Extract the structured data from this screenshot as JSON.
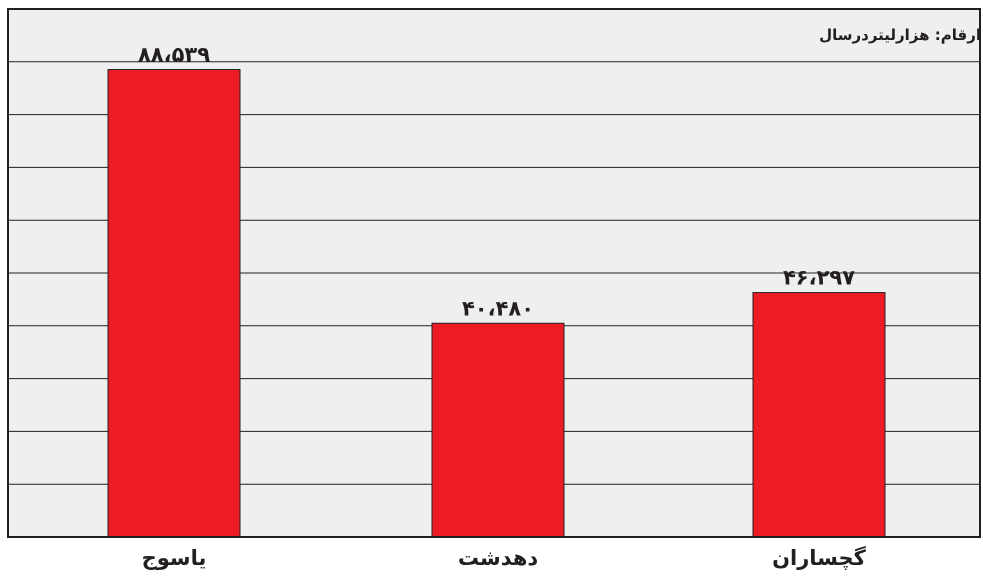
{
  "chart_data": {
    "type": "bar",
    "unit_note": "ارقام: هزارلیتردرسال",
    "categories": [
      "یاسوج",
      "دهدشت",
      "گچساران"
    ],
    "values": [
      88539,
      40480,
      46297
    ],
    "value_labels": [
      "۸۸،۵۳۹",
      "۴۰،۴۸۰",
      "۴۶،۲۹۷"
    ],
    "ylim": [
      0,
      100000
    ],
    "grid": true,
    "colors": {
      "bar": "#ed1c24",
      "plot_bg": "#efefef",
      "grid": "#231f20",
      "text": "#231f20"
    }
  }
}
